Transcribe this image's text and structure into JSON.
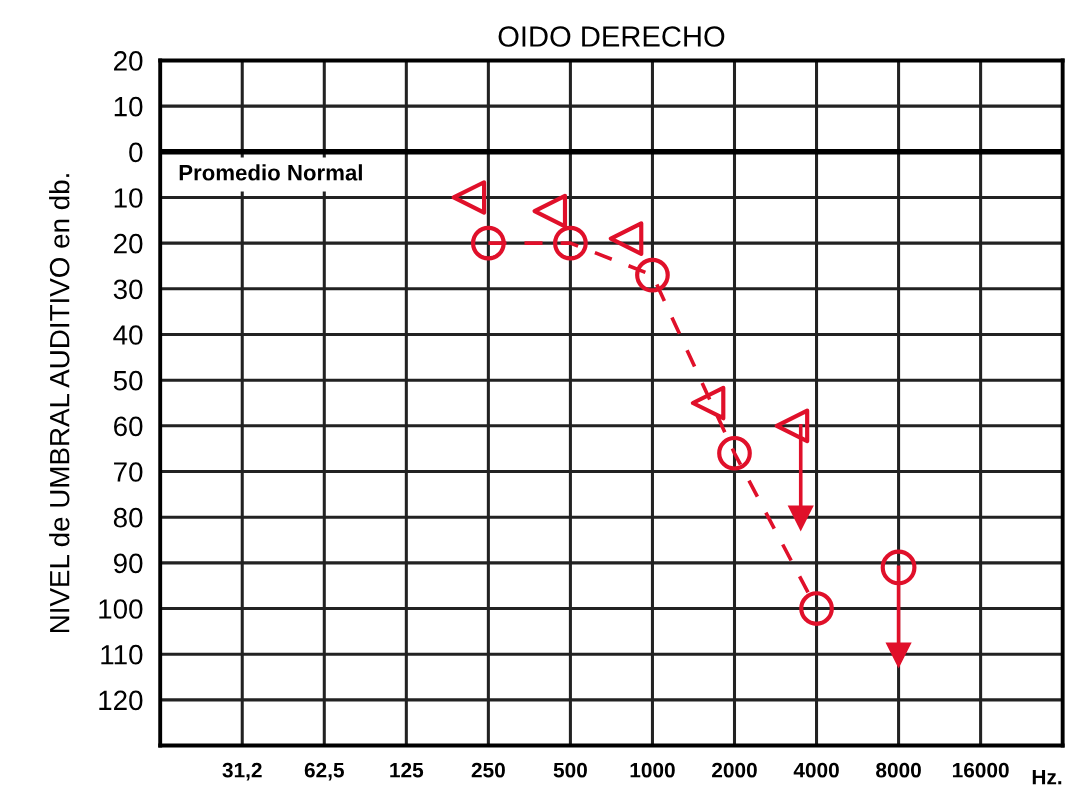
{
  "chart_data": {
    "type": "line",
    "title": "OIDO DERECHO",
    "ylabel": "NIVEL de UMBRAL AUDITIVO en db.",
    "xlabel": "Hz.",
    "annotations": [
      "Promedio Normal"
    ],
    "log": "x",
    "grid": true,
    "legend": false,
    "xlim": [
      15.625,
      32000
    ],
    "xticks": [
      {
        "value": 31.25,
        "label": "31,2"
      },
      {
        "value": 62.5,
        "label": "62,5"
      },
      125,
      250,
      500,
      1000,
      2000,
      4000,
      8000,
      16000
    ],
    "ylim": [
      130,
      -20
    ],
    "yticks": [
      {
        "value": -20,
        "label": "20"
      },
      {
        "value": -10,
        "label": "10"
      },
      0,
      10,
      20,
      30,
      40,
      50,
      60,
      70,
      80,
      90,
      100,
      110,
      120
    ],
    "ref_lines": [
      {
        "axis": "y",
        "value": 0,
        "color": "#000000"
      }
    ],
    "series": [
      {
        "color": "#e0102a",
        "marker": "circle",
        "line_style": "dashed",
        "x": [
          250,
          500,
          1000,
          2000,
          4000
        ],
        "values": [
          20,
          20,
          27,
          66,
          100
        ]
      },
      {
        "type": "scatter",
        "color": "#e0102a",
        "marker": "circle",
        "x": [
          8000
        ],
        "values": [
          91
        ]
      },
      {
        "type": "scatter",
        "color": "#e0102a",
        "marker": "triangle",
        "x": [
          212,
          420,
          800,
          1600,
          3250
        ],
        "values": [
          10,
          13,
          19,
          55,
          60
        ]
      },
      {
        "type": "line",
        "color": "#e0102a",
        "marker": "triangle",
        "x": [
          3500,
          3500
        ],
        "values": [
          60,
          80
        ]
      },
      {
        "type": "line",
        "color": "#e0102a",
        "marker": "triangle",
        "x": [
          8000,
          8000
        ],
        "values": [
          91,
          110
        ]
      }
    ]
  }
}
